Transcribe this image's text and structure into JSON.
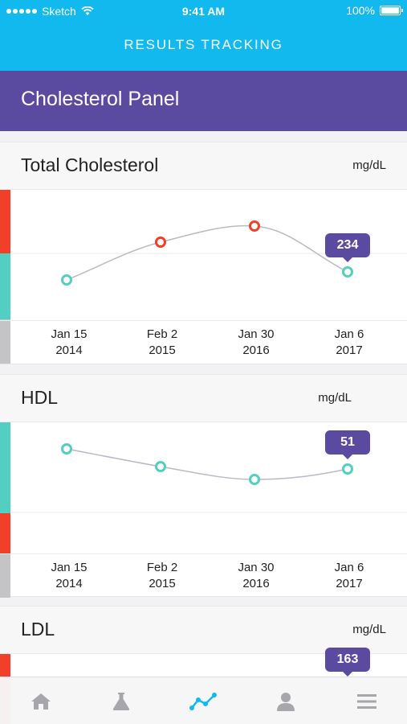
{
  "status_bar": {
    "carrier": "Sketch",
    "time": "9:41 AM",
    "battery": "100%"
  },
  "app_title": "RESULTS TRACKING",
  "panel_title": "Cholesterol Panel",
  "colors": {
    "header": "#12b9ee",
    "panel": "#5a4ba1",
    "high": "#f0402a",
    "normal": "#52cfc1",
    "neutral": "#c4c4c6",
    "active_tab": "#12b9ee"
  },
  "cards": [
    {
      "title": "Total Cholesterol",
      "unit": "mg/dL",
      "dates": [
        {
          "line1": "Jan 15",
          "line2": "2014"
        },
        {
          "line1": "Feb 2",
          "line2": "2015"
        },
        {
          "line1": "Jan 30",
          "line2": "2016"
        },
        {
          "line1": "Jan 6",
          "line2": "2017"
        }
      ],
      "latest_value": "234",
      "points": [
        {
          "status": "normal"
        },
        {
          "status": "high"
        },
        {
          "status": "high"
        },
        {
          "status": "normal"
        }
      ]
    },
    {
      "title": "HDL",
      "unit": "mg/dL",
      "dates": [
        {
          "line1": "Jan 15",
          "line2": "2014"
        },
        {
          "line1": "Feb 2",
          "line2": "2015"
        },
        {
          "line1": "Jan 30",
          "line2": "2016"
        },
        {
          "line1": "Jan 6",
          "line2": "2017"
        }
      ],
      "latest_value": "51",
      "points": [
        {
          "status": "normal"
        },
        {
          "status": "normal"
        },
        {
          "status": "normal"
        },
        {
          "status": "normal"
        }
      ]
    },
    {
      "title": "LDL",
      "unit": "mg/dL",
      "latest_value": "163"
    }
  ],
  "tabs": [
    {
      "name": "home-icon",
      "active": false
    },
    {
      "name": "flask-icon",
      "active": false
    },
    {
      "name": "trends-icon",
      "active": true
    },
    {
      "name": "profile-icon",
      "active": false
    },
    {
      "name": "menu-icon",
      "active": false
    }
  ]
}
